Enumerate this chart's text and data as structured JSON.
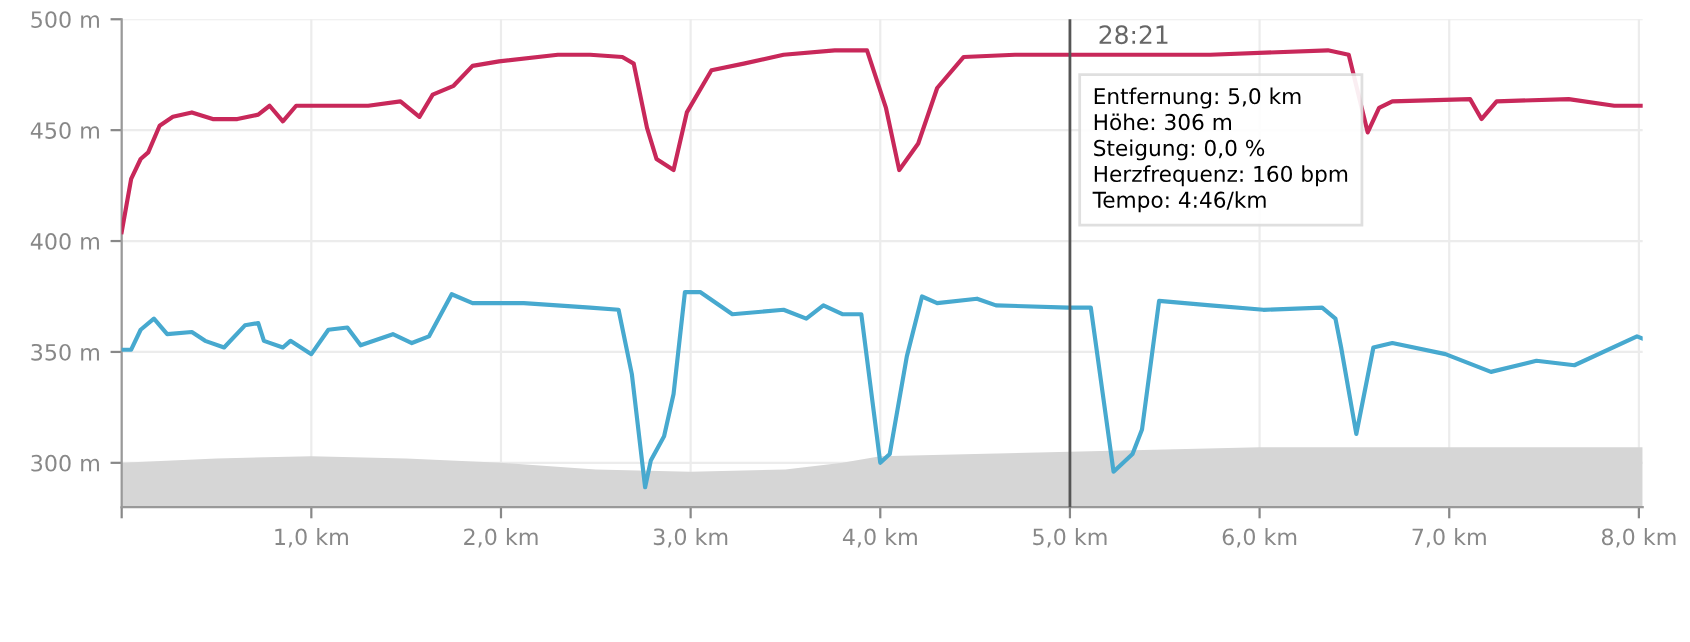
{
  "chart_data": {
    "type": "line",
    "xlim": [
      0,
      8.02
    ],
    "ylim": [
      280,
      500
    ],
    "xticks": [
      {
        "value": 0,
        "label": null
      },
      {
        "value": 1,
        "label": "1,0 km"
      },
      {
        "value": 2,
        "label": "2,0 km"
      },
      {
        "value": 3,
        "label": "3,0 km"
      },
      {
        "value": 4,
        "label": "4,0 km"
      },
      {
        "value": 5,
        "label": "5,0 km"
      },
      {
        "value": 6,
        "label": "6,0 km"
      },
      {
        "value": 7,
        "label": "7,0 km"
      },
      {
        "value": 8,
        "label": "8,0 km"
      }
    ],
    "yticks": [
      {
        "value": 300,
        "label": "300 m"
      },
      {
        "value": 350,
        "label": "350 m"
      },
      {
        "value": 400,
        "label": "400 m"
      },
      {
        "value": 450,
        "label": "450 m"
      },
      {
        "value": 500,
        "label": "500 m"
      }
    ],
    "grid": true,
    "legend": false,
    "marker": "none",
    "line_style": "solid",
    "series": [
      {
        "type": "area",
        "color": "#d6d6d6",
        "x": [
          0,
          0.5,
          1.0,
          1.5,
          2.0,
          2.5,
          3.0,
          3.5,
          3.8,
          4.0,
          4.5,
          5.0,
          5.5,
          6.0,
          6.5,
          7.0,
          7.5,
          8.02
        ],
        "values": [
          300,
          302,
          303,
          302,
          300,
          297,
          296,
          297,
          300,
          303,
          304,
          305,
          306,
          307,
          307,
          307,
          307,
          307
        ]
      },
      {
        "color": "#c8285a",
        "x": [
          0,
          0.05,
          0.1,
          0.14,
          0.2,
          0.27,
          0.37,
          0.48,
          0.61,
          0.72,
          0.78,
          0.85,
          0.92,
          1.1,
          1.3,
          1.47,
          1.57,
          1.64,
          1.75,
          1.85,
          1.99,
          2.3,
          2.47,
          2.64,
          2.7,
          2.77,
          2.82,
          2.91,
          2.98,
          3.11,
          3.28,
          3.49,
          3.76,
          3.93,
          4.03,
          4.1,
          4.2,
          4.3,
          4.44,
          4.71,
          5.06,
          5.74,
          6.36,
          6.47,
          6.57,
          6.63,
          6.7,
          7.11,
          7.17,
          7.25,
          7.63,
          7.87,
          8.02
        ],
        "values": [
          404,
          428,
          437,
          440,
          452,
          456,
          458,
          455,
          455,
          457,
          461,
          454,
          461,
          461,
          461,
          463,
          456,
          466,
          470,
          479,
          481,
          484,
          484,
          483,
          480,
          451,
          437,
          432,
          458,
          477,
          480,
          484,
          486,
          486,
          460,
          432,
          444,
          469,
          483,
          484,
          484,
          484,
          486,
          484,
          449,
          460,
          463,
          464,
          455,
          463,
          464,
          461,
          461
        ]
      },
      {
        "color": "#47a9cf",
        "x": [
          0,
          0.05,
          0.1,
          0.17,
          0.24,
          0.37,
          0.44,
          0.54,
          0.65,
          0.72,
          0.75,
          0.85,
          0.89,
          1.0,
          1.09,
          1.19,
          1.26,
          1.43,
          1.53,
          1.62,
          1.74,
          1.85,
          2.12,
          2.47,
          2.62,
          2.69,
          2.76,
          2.79,
          2.86,
          2.91,
          2.97,
          3.05,
          3.22,
          3.49,
          3.61,
          3.7,
          3.8,
          3.9,
          4.0,
          4.05,
          4.14,
          4.22,
          4.3,
          4.51,
          4.61,
          4.99,
          5.11,
          5.23,
          5.33,
          5.38,
          5.47,
          5.74,
          6.02,
          6.33,
          6.4,
          6.43,
          6.51,
          6.6,
          6.7,
          6.98,
          7.22,
          7.46,
          7.66,
          7.99,
          8.02
        ],
        "values": [
          351,
          351,
          360,
          365,
          358,
          359,
          355,
          352,
          362,
          363,
          355,
          352,
          355,
          349,
          360,
          361,
          353,
          358,
          354,
          357,
          376,
          372,
          372,
          370,
          369,
          340,
          289,
          301,
          312,
          331,
          377,
          377,
          367,
          369,
          365,
          371,
          367,
          367,
          300,
          304,
          348,
          375,
          372,
          374,
          371,
          370,
          370,
          296,
          304,
          315,
          373,
          371,
          369,
          370,
          365,
          352,
          313,
          352,
          354,
          349,
          341,
          346,
          344,
          357,
          356
        ]
      }
    ],
    "ref_lines": [
      {
        "axis": "x",
        "value": 5.0,
        "color": "#555555"
      }
    ],
    "annotations": [
      {
        "text": "28:21",
        "x": 5.0,
        "y": 500
      },
      "Entfernung: 5,0 km",
      "Höhe: 306 m",
      "Steigung: 0,0 %",
      "Herzfrequenz: 160 bpm",
      "Tempo: 4:46/km"
    ]
  }
}
